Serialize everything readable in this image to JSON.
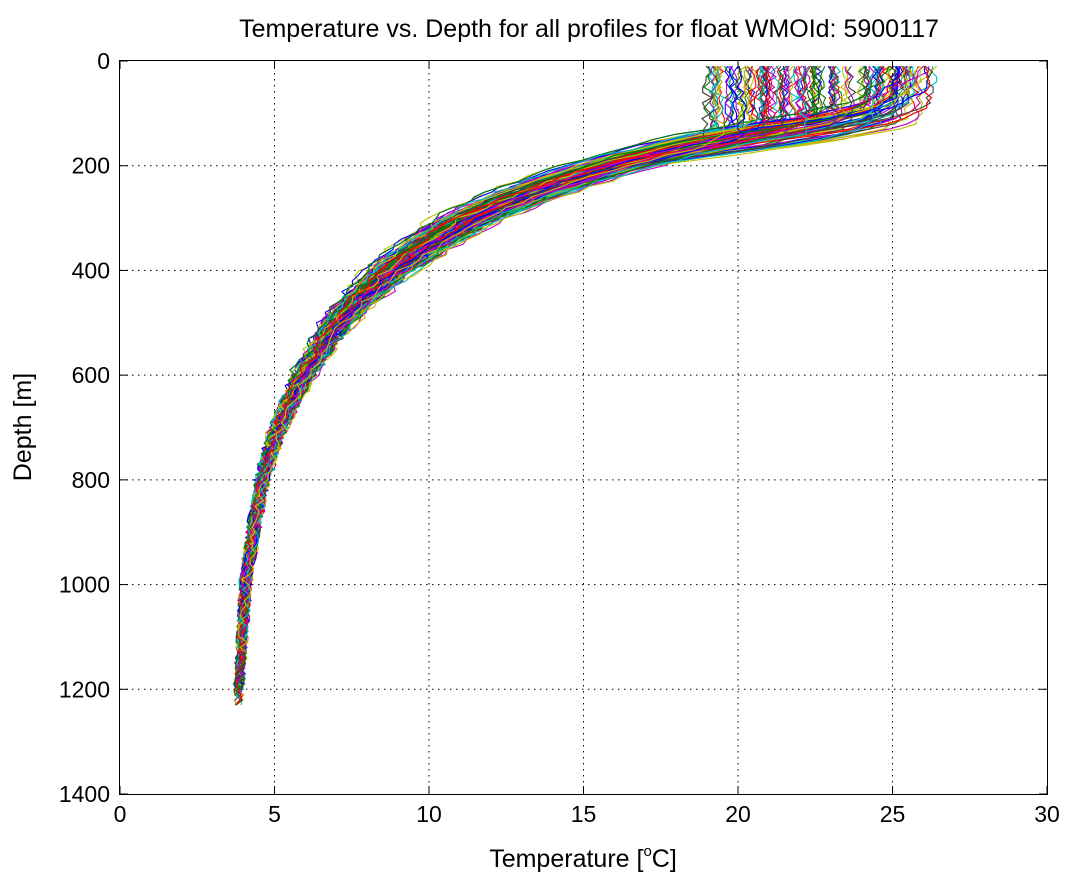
{
  "chart_data": {
    "type": "line",
    "title": "Temperature vs. Depth for all profiles for float WMOId: 5900117",
    "xlabel_prefix": "Temperature [",
    "xlabel_superscript": "o",
    "xlabel_suffix": "C]",
    "ylabel": "Depth [m]",
    "xlim": [
      0,
      30
    ],
    "ylim": [
      0,
      1400
    ],
    "y_reversed": true,
    "xticks": [
      0,
      5,
      10,
      15,
      20,
      25,
      30
    ],
    "yticks": [
      0,
      200,
      400,
      600,
      800,
      1000,
      1200,
      1400
    ],
    "xtick_labels": [
      "0",
      "5",
      "10",
      "15",
      "20",
      "25",
      "30"
    ],
    "ytick_labels": [
      "0",
      "200",
      "400",
      "600",
      "800",
      "1000",
      "1200",
      "1400"
    ],
    "grid": true,
    "colors": [
      "#0000ff",
      "#008000",
      "#ff0000",
      "#00bfbf",
      "#bf00bf",
      "#bfbf00",
      "#404040"
    ],
    "representative_profile": {
      "depth": [
        10,
        50,
        90,
        120,
        150,
        200,
        250,
        300,
        350,
        400,
        450,
        500,
        600,
        700,
        800,
        900,
        1000,
        1100,
        1200,
        1230
      ],
      "temperature": [
        24.8,
        24.6,
        23.8,
        22.0,
        19.0,
        15.7,
        13.2,
        11.2,
        9.9,
        8.7,
        7.8,
        7.0,
        5.9,
        5.1,
        4.6,
        4.3,
        4.05,
        3.95,
        3.85,
        3.82
      ]
    },
    "profile_count": 160,
    "surface_temperature_range": [
      19,
      26.5
    ]
  }
}
